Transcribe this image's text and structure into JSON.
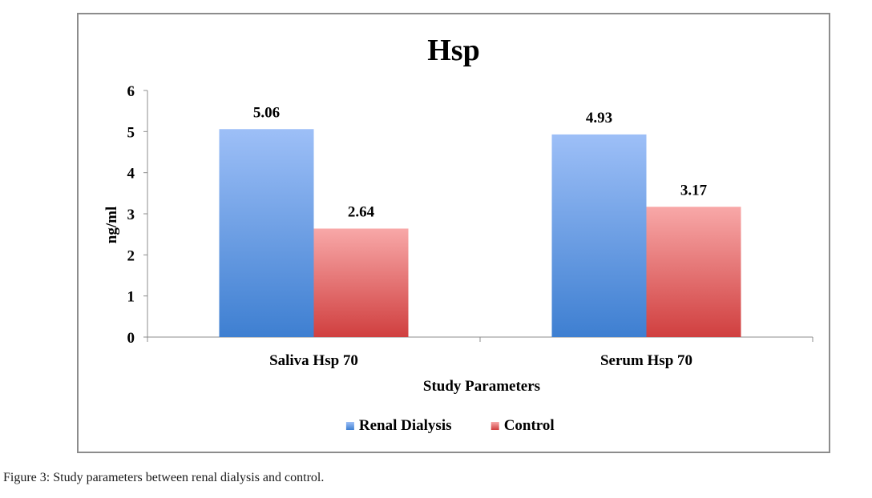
{
  "chart_data": {
    "type": "bar",
    "title": "Hsp",
    "xlabel": "Study Parameters",
    "ylabel": "ng/ml",
    "categories": [
      "Saliva Hsp 70",
      "Serum Hsp 70"
    ],
    "series": [
      {
        "name": "Renal Dialysis",
        "values": [
          5.06,
          4.93
        ],
        "data_labels": [
          "5.06",
          "4.93"
        ]
      },
      {
        "name": "Control",
        "values": [
          2.64,
          3.17
        ],
        "data_labels": [
          "2.64",
          "3.17"
        ]
      }
    ],
    "ylim": [
      0,
      6
    ],
    "yticks": [
      "0",
      "1",
      "2",
      "3",
      "4",
      "5",
      "6"
    ],
    "grid": false,
    "legend_position": "bottom",
    "colors": {
      "Renal Dialysis": {
        "top": "#9dbff7",
        "bottom": "#3e7fd1"
      },
      "Control": {
        "top": "#f8a8a8",
        "bottom": "#d03f3f"
      }
    }
  },
  "caption": {
    "label": "Figure 3:",
    "text": " Study parameters between renal dialysis and control."
  }
}
